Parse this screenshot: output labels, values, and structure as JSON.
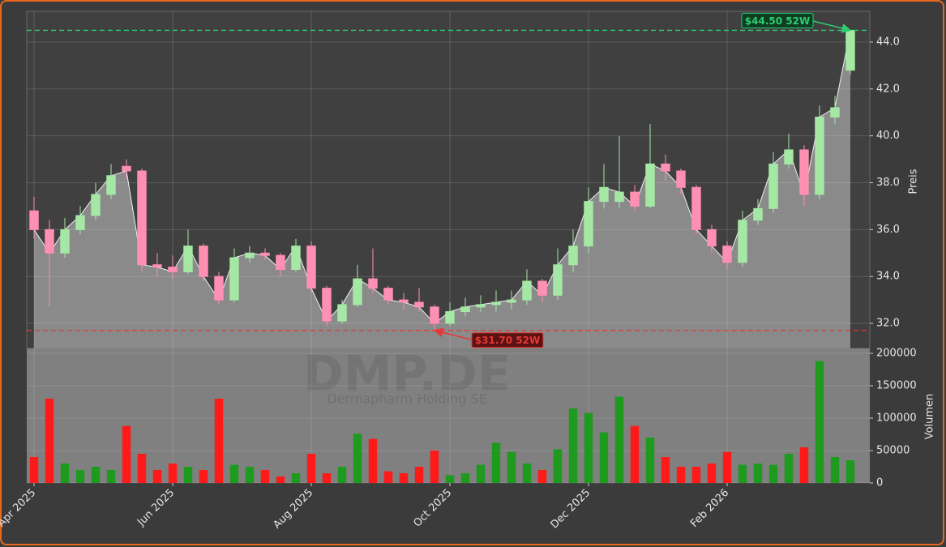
{
  "chart_data": {
    "type": "candlestick",
    "watermark": "DMP.DE",
    "subtitle": "Dermapharm Holding SE",
    "categories": [
      "Apr 2025",
      null,
      null,
      null,
      null,
      null,
      null,
      null,
      null,
      "Jun 2025",
      null,
      null,
      null,
      null,
      null,
      null,
      null,
      null,
      "Aug 2025",
      null,
      null,
      null,
      null,
      null,
      null,
      null,
      null,
      "Oct 2025",
      null,
      null,
      null,
      null,
      null,
      null,
      null,
      null,
      "Dec 2025",
      null,
      null,
      null,
      null,
      null,
      null,
      null,
      null,
      "Feb 2026",
      null,
      null,
      null,
      null,
      null,
      null,
      null,
      null
    ],
    "open": [
      36.8,
      36.0,
      35.0,
      36.0,
      36.6,
      37.5,
      38.7,
      38.5,
      34.5,
      34.4,
      34.2,
      35.3,
      34.0,
      33.0,
      34.8,
      35.0,
      34.9,
      34.3,
      35.3,
      33.5,
      32.1,
      32.8,
      33.9,
      33.5,
      33.0,
      32.9,
      32.7,
      32.0,
      32.5,
      32.7,
      32.8,
      32.9,
      33.0,
      33.8,
      33.2,
      34.5,
      35.3,
      37.2,
      37.2,
      37.6,
      37.0,
      38.8,
      38.5,
      37.8,
      36.0,
      35.3,
      34.6,
      36.4,
      36.9,
      38.8,
      39.4,
      37.5,
      40.8,
      42.8
    ],
    "high": [
      37.4,
      36.4,
      36.5,
      37.0,
      38.0,
      38.8,
      39.0,
      38.6,
      35.0,
      34.9,
      36.0,
      35.4,
      34.2,
      35.2,
      35.3,
      35.2,
      35.0,
      35.6,
      35.5,
      33.6,
      33.0,
      34.5,
      35.2,
      33.6,
      33.3,
      33.5,
      32.8,
      32.9,
      33.1,
      33.2,
      33.4,
      33.4,
      34.3,
      33.9,
      35.2,
      36.0,
      37.8,
      38.8,
      40.0,
      37.9,
      40.5,
      39.2,
      38.6,
      37.9,
      36.2,
      35.5,
      36.8,
      37.3,
      39.3,
      40.1,
      39.6,
      41.3,
      41.7,
      44.5
    ],
    "low": [
      35.6,
      32.7,
      34.8,
      35.8,
      36.4,
      37.3,
      38.2,
      34.2,
      34.0,
      33.9,
      34.1,
      33.8,
      32.8,
      32.9,
      34.6,
      34.7,
      34.0,
      34.2,
      33.3,
      31.9,
      32.0,
      32.7,
      33.3,
      32.8,
      32.6,
      32.5,
      31.7,
      31.9,
      32.3,
      32.5,
      32.5,
      32.6,
      32.8,
      32.9,
      33.0,
      34.2,
      35.0,
      36.9,
      36.9,
      36.8,
      36.9,
      38.1,
      37.5,
      35.8,
      35.0,
      34.3,
      34.4,
      36.2,
      36.7,
      38.6,
      37.0,
      37.3,
      40.5,
      42.6
    ],
    "close": [
      36.0,
      35.0,
      36.0,
      36.6,
      37.5,
      38.3,
      38.5,
      34.5,
      34.4,
      34.2,
      35.3,
      34.0,
      33.0,
      34.8,
      35.0,
      34.9,
      34.3,
      35.3,
      33.5,
      32.1,
      32.8,
      33.9,
      33.5,
      33.0,
      32.9,
      32.7,
      32.0,
      32.5,
      32.7,
      32.8,
      32.9,
      33.0,
      33.8,
      33.2,
      34.5,
      35.3,
      37.2,
      37.8,
      37.6,
      37.0,
      38.8,
      38.5,
      37.8,
      36.0,
      35.3,
      34.6,
      36.4,
      36.9,
      38.8,
      39.4,
      37.5,
      40.8,
      41.2,
      44.5
    ],
    "up_color": "#a5e8a5",
    "down_color": "#ff8fb3",
    "area_color": "#8a8a8a",
    "ylabel": "Preis",
    "ylim": [
      30.93,
      45.31
    ],
    "yticks": [
      {
        "value": 32,
        "label": "32.0"
      },
      {
        "value": 34,
        "label": "34.0"
      },
      {
        "value": 36,
        "label": "36.0"
      },
      {
        "value": 38,
        "label": "38.0"
      },
      {
        "value": 40,
        "label": "40.0"
      },
      {
        "value": 42,
        "label": "42.0"
      },
      {
        "value": 44,
        "label": "44.0"
      }
    ],
    "grid": true,
    "annotations": [
      {
        "value": 44.5,
        "label": "$44.50 52W",
        "color": "#2ecc71"
      },
      {
        "value": 31.7,
        "label": "$31.70 52W",
        "color": "#e53935"
      }
    ],
    "volume": {
      "ylabel": "Volumen",
      "values": [
        40000,
        130000,
        30000,
        20000,
        25000,
        20000,
        88000,
        45000,
        20000,
        30000,
        25000,
        20000,
        130000,
        28000,
        25000,
        20000,
        10000,
        15000,
        45000,
        15000,
        25000,
        76000,
        68000,
        18000,
        15000,
        25000,
        50000,
        12000,
        15000,
        28000,
        62000,
        48000,
        30000,
        20000,
        52000,
        115000,
        108000,
        78000,
        133000,
        88000,
        70000,
        40000,
        25000,
        25000,
        30000,
        48000,
        28000,
        30000,
        28000,
        45000,
        55000,
        188000,
        40000,
        35000
      ],
      "up_color": "#1e9a1e",
      "down_color": "#ff1a1a",
      "ylim": [
        0,
        207500
      ],
      "yticks": [
        0,
        50000,
        100000,
        150000,
        200000
      ]
    }
  }
}
